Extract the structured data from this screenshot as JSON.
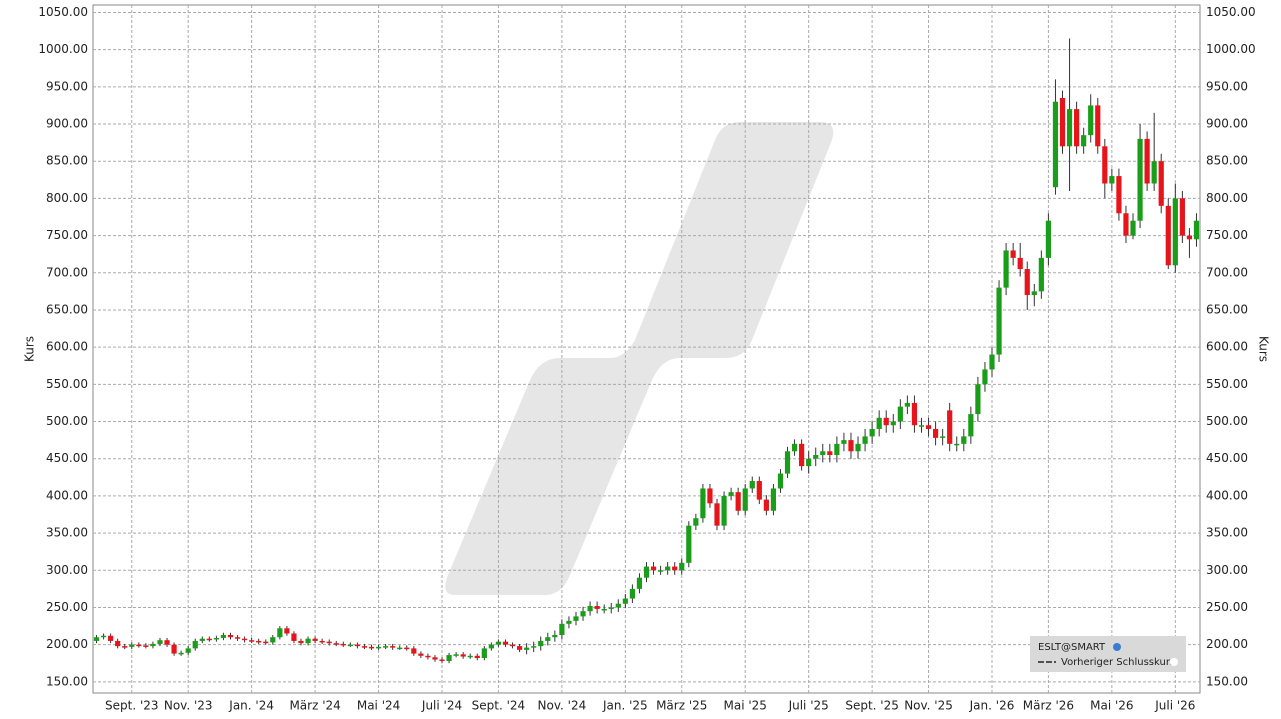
{
  "chart_data": {
    "type": "candlestick",
    "y_axis_label": "Kurs",
    "legend": {
      "symbol": "ESLT@SMART",
      "line": "Vorheriger Schlusskurs"
    },
    "up_color": "#1a9e1a",
    "down_color": "#e8141c",
    "grid": true,
    "ylim": [
      135,
      1060
    ],
    "yticks": [
      {
        "value": 150,
        "label": "150.00"
      },
      {
        "value": 200,
        "label": "200.00"
      },
      {
        "value": 250,
        "label": "250.00"
      },
      {
        "value": 300,
        "label": "300.00"
      },
      {
        "value": 350,
        "label": "350.00"
      },
      {
        "value": 400,
        "label": "400.00"
      },
      {
        "value": 450,
        "label": "450.00"
      },
      {
        "value": 500,
        "label": "500.00"
      },
      {
        "value": 550,
        "label": "550.00"
      },
      {
        "value": 600,
        "label": "600.00"
      },
      {
        "value": 650,
        "label": "650.00"
      },
      {
        "value": 700,
        "label": "700.00"
      },
      {
        "value": 750,
        "label": "750.00"
      },
      {
        "value": 800,
        "label": "800.00"
      },
      {
        "value": 850,
        "label": "850.00"
      },
      {
        "value": 900,
        "label": "900.00"
      },
      {
        "value": 950,
        "label": "950.00"
      },
      {
        "value": 1000,
        "label": "1000.00"
      },
      {
        "value": 1050,
        "label": "1050.00"
      }
    ],
    "categories": [
      null,
      null,
      null,
      null,
      null,
      "Sept. '23",
      null,
      null,
      null,
      null,
      null,
      null,
      null,
      "Nov. '23",
      null,
      null,
      null,
      null,
      null,
      null,
      null,
      null,
      "Jan. '24",
      null,
      null,
      null,
      null,
      null,
      null,
      null,
      null,
      "März '24",
      null,
      null,
      null,
      null,
      null,
      null,
      null,
      null,
      "Mai '24",
      null,
      null,
      null,
      null,
      null,
      null,
      null,
      null,
      "Juli '24",
      null,
      null,
      null,
      null,
      null,
      null,
      null,
      "Sept. '24",
      null,
      null,
      null,
      null,
      null,
      null,
      null,
      null,
      "Nov. '24",
      null,
      null,
      null,
      null,
      null,
      null,
      null,
      null,
      "Jan. '25",
      null,
      null,
      null,
      null,
      null,
      null,
      null,
      "März '25",
      null,
      null,
      null,
      null,
      null,
      null,
      null,
      null,
      "Mai '25",
      null,
      null,
      null,
      null,
      null,
      null,
      null,
      null,
      "Juli '25",
      null,
      null,
      null,
      null,
      null,
      null,
      null,
      null,
      "Sept. '25",
      null,
      null,
      null,
      null,
      null,
      null,
      null,
      "Nov. '25",
      null,
      null,
      null,
      null,
      null,
      null,
      null,
      null,
      "Jan. '26",
      null,
      null,
      null,
      null,
      null,
      null,
      null,
      "März '26",
      null,
      null,
      null,
      null,
      null,
      null,
      null,
      null,
      "Mai '26",
      null,
      null,
      null,
      null,
      null,
      null,
      null,
      null,
      "Juli '26",
      null,
      null,
      null
    ],
    "open": [
      205,
      210,
      212,
      205,
      198,
      197,
      200,
      199,
      198,
      201,
      206,
      200,
      188,
      189,
      195,
      205,
      208,
      207,
      209,
      213,
      210,
      208,
      206,
      205,
      204,
      203,
      210,
      222,
      215,
      205,
      202,
      208,
      205,
      204,
      202,
      201,
      200,
      200,
      198,
      197,
      196,
      197,
      198,
      196,
      196,
      195,
      188,
      185,
      183,
      180,
      178,
      186,
      187,
      184,
      185,
      182,
      195,
      200,
      204,
      200,
      198,
      193,
      196,
      198,
      205,
      210,
      213,
      228,
      232,
      238,
      245,
      252,
      248,
      248,
      250,
      255,
      262,
      275,
      290,
      305,
      300,
      300,
      305,
      300,
      310,
      360,
      370,
      410,
      390,
      360,
      400,
      405,
      380,
      410,
      420,
      395,
      380,
      410,
      430,
      460,
      470,
      440,
      450,
      455,
      460,
      455,
      470,
      475,
      460,
      470,
      480,
      490,
      505,
      495,
      500,
      520,
      525,
      495,
      495,
      490,
      478,
      515,
      470,
      470,
      480,
      510,
      550,
      570,
      590,
      680,
      730,
      720,
      705,
      670,
      675,
      720,
      815,
      935,
      870,
      920,
      870,
      885,
      925,
      870,
      820,
      830,
      780,
      750,
      770,
      880,
      820,
      850,
      790,
      710,
      800,
      750,
      745
    ],
    "high": [
      213,
      215,
      215,
      208,
      201,
      203,
      203,
      202,
      204,
      209,
      209,
      203,
      192,
      198,
      208,
      211,
      211,
      212,
      216,
      216,
      213,
      211,
      209,
      208,
      207,
      213,
      225,
      225,
      218,
      208,
      211,
      211,
      208,
      207,
      205,
      204,
      203,
      203,
      201,
      200,
      200,
      201,
      201,
      199,
      199,
      198,
      191,
      188,
      186,
      183,
      189,
      190,
      190,
      188,
      188,
      198,
      203,
      207,
      207,
      203,
      201,
      202,
      204,
      211,
      216,
      219,
      234,
      238,
      244,
      251,
      258,
      258,
      254,
      256,
      261,
      268,
      281,
      296,
      311,
      311,
      306,
      311,
      311,
      316,
      366,
      376,
      416,
      416,
      396,
      406,
      411,
      411,
      416,
      426,
      426,
      401,
      416,
      436,
      466,
      476,
      476,
      460,
      465,
      470,
      470,
      480,
      485,
      485,
      480,
      490,
      500,
      515,
      515,
      510,
      530,
      535,
      535,
      505,
      505,
      500,
      490,
      525,
      480,
      490,
      520,
      560,
      580,
      600,
      690,
      740,
      740,
      740,
      715,
      685,
      730,
      780,
      960,
      945,
      1015,
      930,
      895,
      940,
      935,
      880,
      840,
      840,
      790,
      780,
      900,
      890,
      915,
      860,
      800,
      820,
      810,
      760,
      780
    ],
    "low": [
      202,
      207,
      202,
      195,
      194,
      194,
      196,
      195,
      195,
      198,
      197,
      185,
      185,
      186,
      192,
      202,
      204,
      204,
      206,
      207,
      205,
      203,
      202,
      201,
      200,
      200,
      207,
      212,
      202,
      199,
      199,
      202,
      201,
      199,
      198,
      197,
      197,
      195,
      194,
      193,
      193,
      194,
      193,
      193,
      192,
      185,
      182,
      180,
      177,
      175,
      175,
      183,
      181,
      181,
      179,
      179,
      192,
      197,
      197,
      195,
      190,
      187,
      190,
      192,
      199,
      204,
      207,
      222,
      226,
      232,
      239,
      242,
      242,
      242,
      244,
      249,
      256,
      269,
      284,
      294,
      294,
      294,
      294,
      294,
      304,
      354,
      364,
      384,
      354,
      354,
      394,
      374,
      374,
      404,
      389,
      374,
      374,
      404,
      424,
      454,
      434,
      430,
      440,
      445,
      445,
      445,
      460,
      450,
      450,
      460,
      470,
      480,
      485,
      485,
      490,
      510,
      485,
      485,
      480,
      468,
      468,
      460,
      460,
      460,
      470,
      500,
      540,
      560,
      580,
      670,
      710,
      695,
      650,
      655,
      665,
      710,
      805,
      860,
      810,
      860,
      860,
      875,
      860,
      800,
      810,
      770,
      740,
      745,
      760,
      810,
      810,
      780,
      705,
      700,
      740,
      720,
      735
    ],
    "close": [
      210,
      212,
      205,
      198,
      197,
      200,
      199,
      198,
      201,
      206,
      200,
      188,
      189,
      195,
      205,
      208,
      207,
      209,
      213,
      210,
      208,
      206,
      205,
      204,
      203,
      210,
      222,
      215,
      205,
      202,
      208,
      205,
      204,
      202,
      201,
      200,
      200,
      198,
      197,
      196,
      197,
      198,
      196,
      196,
      195,
      188,
      185,
      183,
      180,
      178,
      186,
      187,
      184,
      185,
      182,
      195,
      200,
      204,
      200,
      198,
      193,
      196,
      198,
      205,
      210,
      213,
      228,
      232,
      238,
      245,
      252,
      248,
      248,
      250,
      255,
      262,
      275,
      290,
      305,
      300,
      300,
      305,
      300,
      310,
      360,
      370,
      410,
      390,
      360,
      400,
      405,
      380,
      410,
      420,
      395,
      380,
      410,
      430,
      460,
      470,
      440,
      450,
      455,
      460,
      455,
      470,
      475,
      460,
      470,
      480,
      490,
      505,
      495,
      500,
      520,
      525,
      495,
      495,
      490,
      478,
      480,
      470,
      470,
      480,
      510,
      550,
      570,
      590,
      680,
      730,
      720,
      705,
      670,
      675,
      720,
      770,
      930,
      870,
      920,
      870,
      885,
      925,
      870,
      820,
      830,
      780,
      750,
      770,
      880,
      820,
      850,
      790,
      710,
      800,
      750,
      745,
      770
    ]
  }
}
